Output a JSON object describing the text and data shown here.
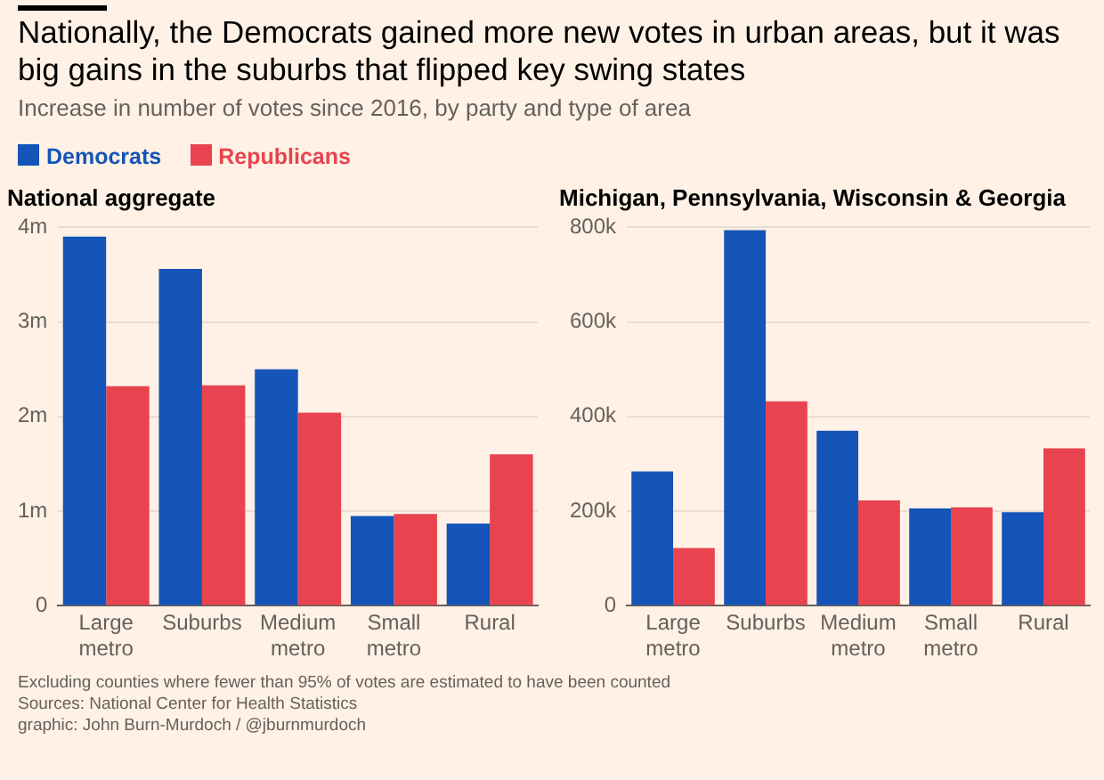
{
  "chart_data": [
    {
      "type": "other",
      "title": "Nationally, the Democrats gained more new votes in urban areas, but it was big gains in the suburbs that flipped key swing states",
      "subtitle": "Increase in number of votes since 2016, by party and type of area"
    },
    {
      "type": "bar",
      "title": "National aggregate",
      "categories": [
        "Large metro",
        "Suburbs",
        "Medium metro",
        "Small metro",
        "Rural"
      ],
      "series": [
        {
          "name": "Democrats",
          "color": "#1554b8",
          "values": [
            3.9,
            3.56,
            2.5,
            0.95,
            0.87
          ]
        },
        {
          "name": "Republicans",
          "color": "#e8434f",
          "values": [
            2.32,
            2.33,
            2.04,
            0.97,
            1.6
          ]
        }
      ],
      "ylim": [
        0,
        4
      ],
      "yticks": [
        {
          "value": 0,
          "label": "0"
        },
        {
          "value": 1,
          "label": "1m"
        },
        {
          "value": 2,
          "label": "2m"
        },
        {
          "value": 3,
          "label": "3m"
        },
        {
          "value": 4,
          "label": "4m"
        }
      ],
      "grid": "y",
      "legend": "top left"
    },
    {
      "type": "bar",
      "title": "Michigan, Pennsylvania, Wisconsin & Georgia",
      "categories": [
        "Large metro",
        "Suburbs",
        "Medium metro",
        "Small metro",
        "Rural"
      ],
      "series": [
        {
          "color": "#1554b8",
          "values": [
            284,
            794,
            370,
            206,
            198
          ]
        },
        {
          "color": "#e8434f",
          "values": [
            122,
            432,
            223,
            208,
            333
          ]
        }
      ],
      "ylim": [
        0,
        800
      ],
      "yticks": [
        {
          "value": 0,
          "label": "0"
        },
        {
          "value": 200,
          "label": "200k"
        },
        {
          "value": 400,
          "label": "400k"
        },
        {
          "value": 600,
          "label": "600k"
        },
        {
          "value": 800,
          "label": "800k"
        }
      ],
      "grid": "y",
      "annotations": [
        "Excluding counties where fewer than 95% of votes are estimated to have been counted",
        "Sources: National Center for Health Statistics",
        "graphic: John Burn-Murdoch / @jburnmurdoch"
      ]
    }
  ]
}
